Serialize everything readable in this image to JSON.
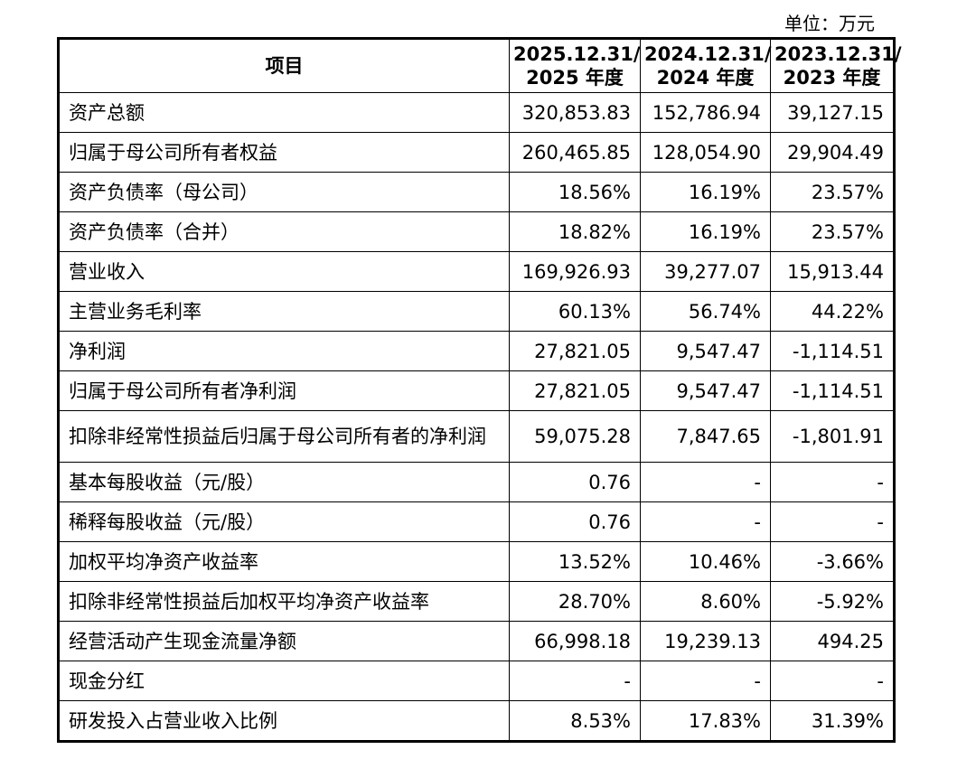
{
  "unit_label": "单位：万元",
  "header": {
    "item": "项目",
    "years": [
      {
        "line1": "2025.12.31/",
        "line2": "2025 年度"
      },
      {
        "line1": "2024.12.31/",
        "line2": "2024 年度"
      },
      {
        "line1": "2023.12.31/",
        "line2": "2023 年度"
      }
    ]
  },
  "rows": [
    {
      "label": "资产总额",
      "values": [
        "320,853.83",
        "152,786.94",
        "39,127.15"
      ]
    },
    {
      "label": "归属于母公司所有者权益",
      "values": [
        "260,465.85",
        "128,054.90",
        "29,904.49"
      ]
    },
    {
      "label": "资产负债率（母公司）",
      "values": [
        "18.56%",
        "16.19%",
        "23.57%"
      ]
    },
    {
      "label": "资产负债率（合并）",
      "values": [
        "18.82%",
        "16.19%",
        "23.57%"
      ]
    },
    {
      "label": "营业收入",
      "values": [
        "169,926.93",
        "39,277.07",
        "15,913.44"
      ]
    },
    {
      "label": "主营业务毛利率",
      "values": [
        "60.13%",
        "56.74%",
        "44.22%"
      ]
    },
    {
      "label": "净利润",
      "values": [
        "27,821.05",
        "9,547.47",
        "-1,114.51"
      ]
    },
    {
      "label": "归属于母公司所有者净利润",
      "values": [
        "27,821.05",
        "9,547.47",
        "-1,114.51"
      ]
    },
    {
      "label": "扣除非经常性损益后归属于母公司所有者的净利润",
      "values": [
        "59,075.28",
        "7,847.65",
        "-1,801.91"
      ]
    },
    {
      "label": "基本每股收益（元/股）",
      "values": [
        "0.76",
        "-",
        "-"
      ]
    },
    {
      "label": "稀释每股收益（元/股）",
      "values": [
        "0.76",
        "-",
        "-"
      ]
    },
    {
      "label": "加权平均净资产收益率",
      "values": [
        "13.52%",
        "10.46%",
        "-3.66%"
      ]
    },
    {
      "label": "扣除非经常性损益后加权平均净资产收益率",
      "values": [
        "28.70%",
        "8.60%",
        "-5.92%"
      ]
    },
    {
      "label": "经营活动产生现金流量净额",
      "values": [
        "66,998.18",
        "19,239.13",
        "494.25"
      ]
    },
    {
      "label": "现金分红",
      "values": [
        "-",
        "-",
        "-"
      ]
    },
    {
      "label": "研发投入占营业收入比例",
      "values": [
        "8.53%",
        "17.83%",
        "31.39%"
      ]
    }
  ]
}
